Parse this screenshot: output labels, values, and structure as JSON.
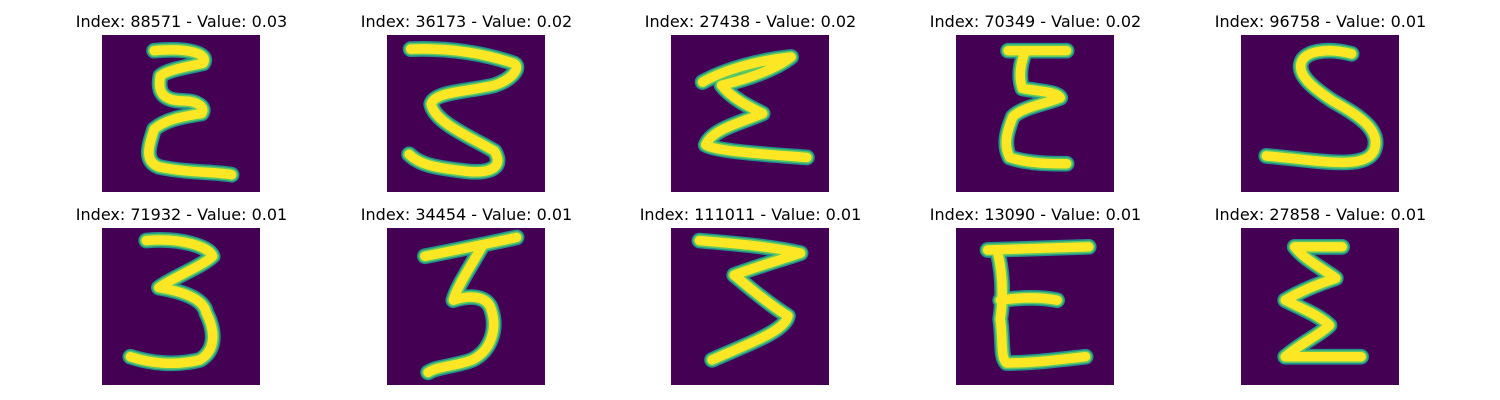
{
  "colors": {
    "background": "#440154",
    "stroke_outer": "#21918c",
    "stroke_mid": "#5ec962",
    "stroke_inner": "#fde725"
  },
  "grid": [
    {
      "title": "Index: 88571 - Value: 0.03",
      "glyph": "E"
    },
    {
      "title": "Index: 36173 - Value: 0.02",
      "glyph": "3"
    },
    {
      "title": "Index: 27438 - Value: 0.02",
      "glyph": "Σ"
    },
    {
      "title": "Index: 70349 - Value: 0.02",
      "glyph": "E"
    },
    {
      "title": "Index: 96758 - Value: 0.01",
      "glyph": "S"
    },
    {
      "title": "Index: 71932 - Value: 0.01",
      "glyph": "3"
    },
    {
      "title": "Index: 34454 - Value: 0.01",
      "glyph": "3"
    },
    {
      "title": "Index: 111011 - Value: 0.01",
      "glyph": "3"
    },
    {
      "title": "Index: 13090 - Value: 0.01",
      "glyph": "E"
    },
    {
      "title": "Index: 27858 - Value: 0.01",
      "glyph": "Σ"
    }
  ]
}
